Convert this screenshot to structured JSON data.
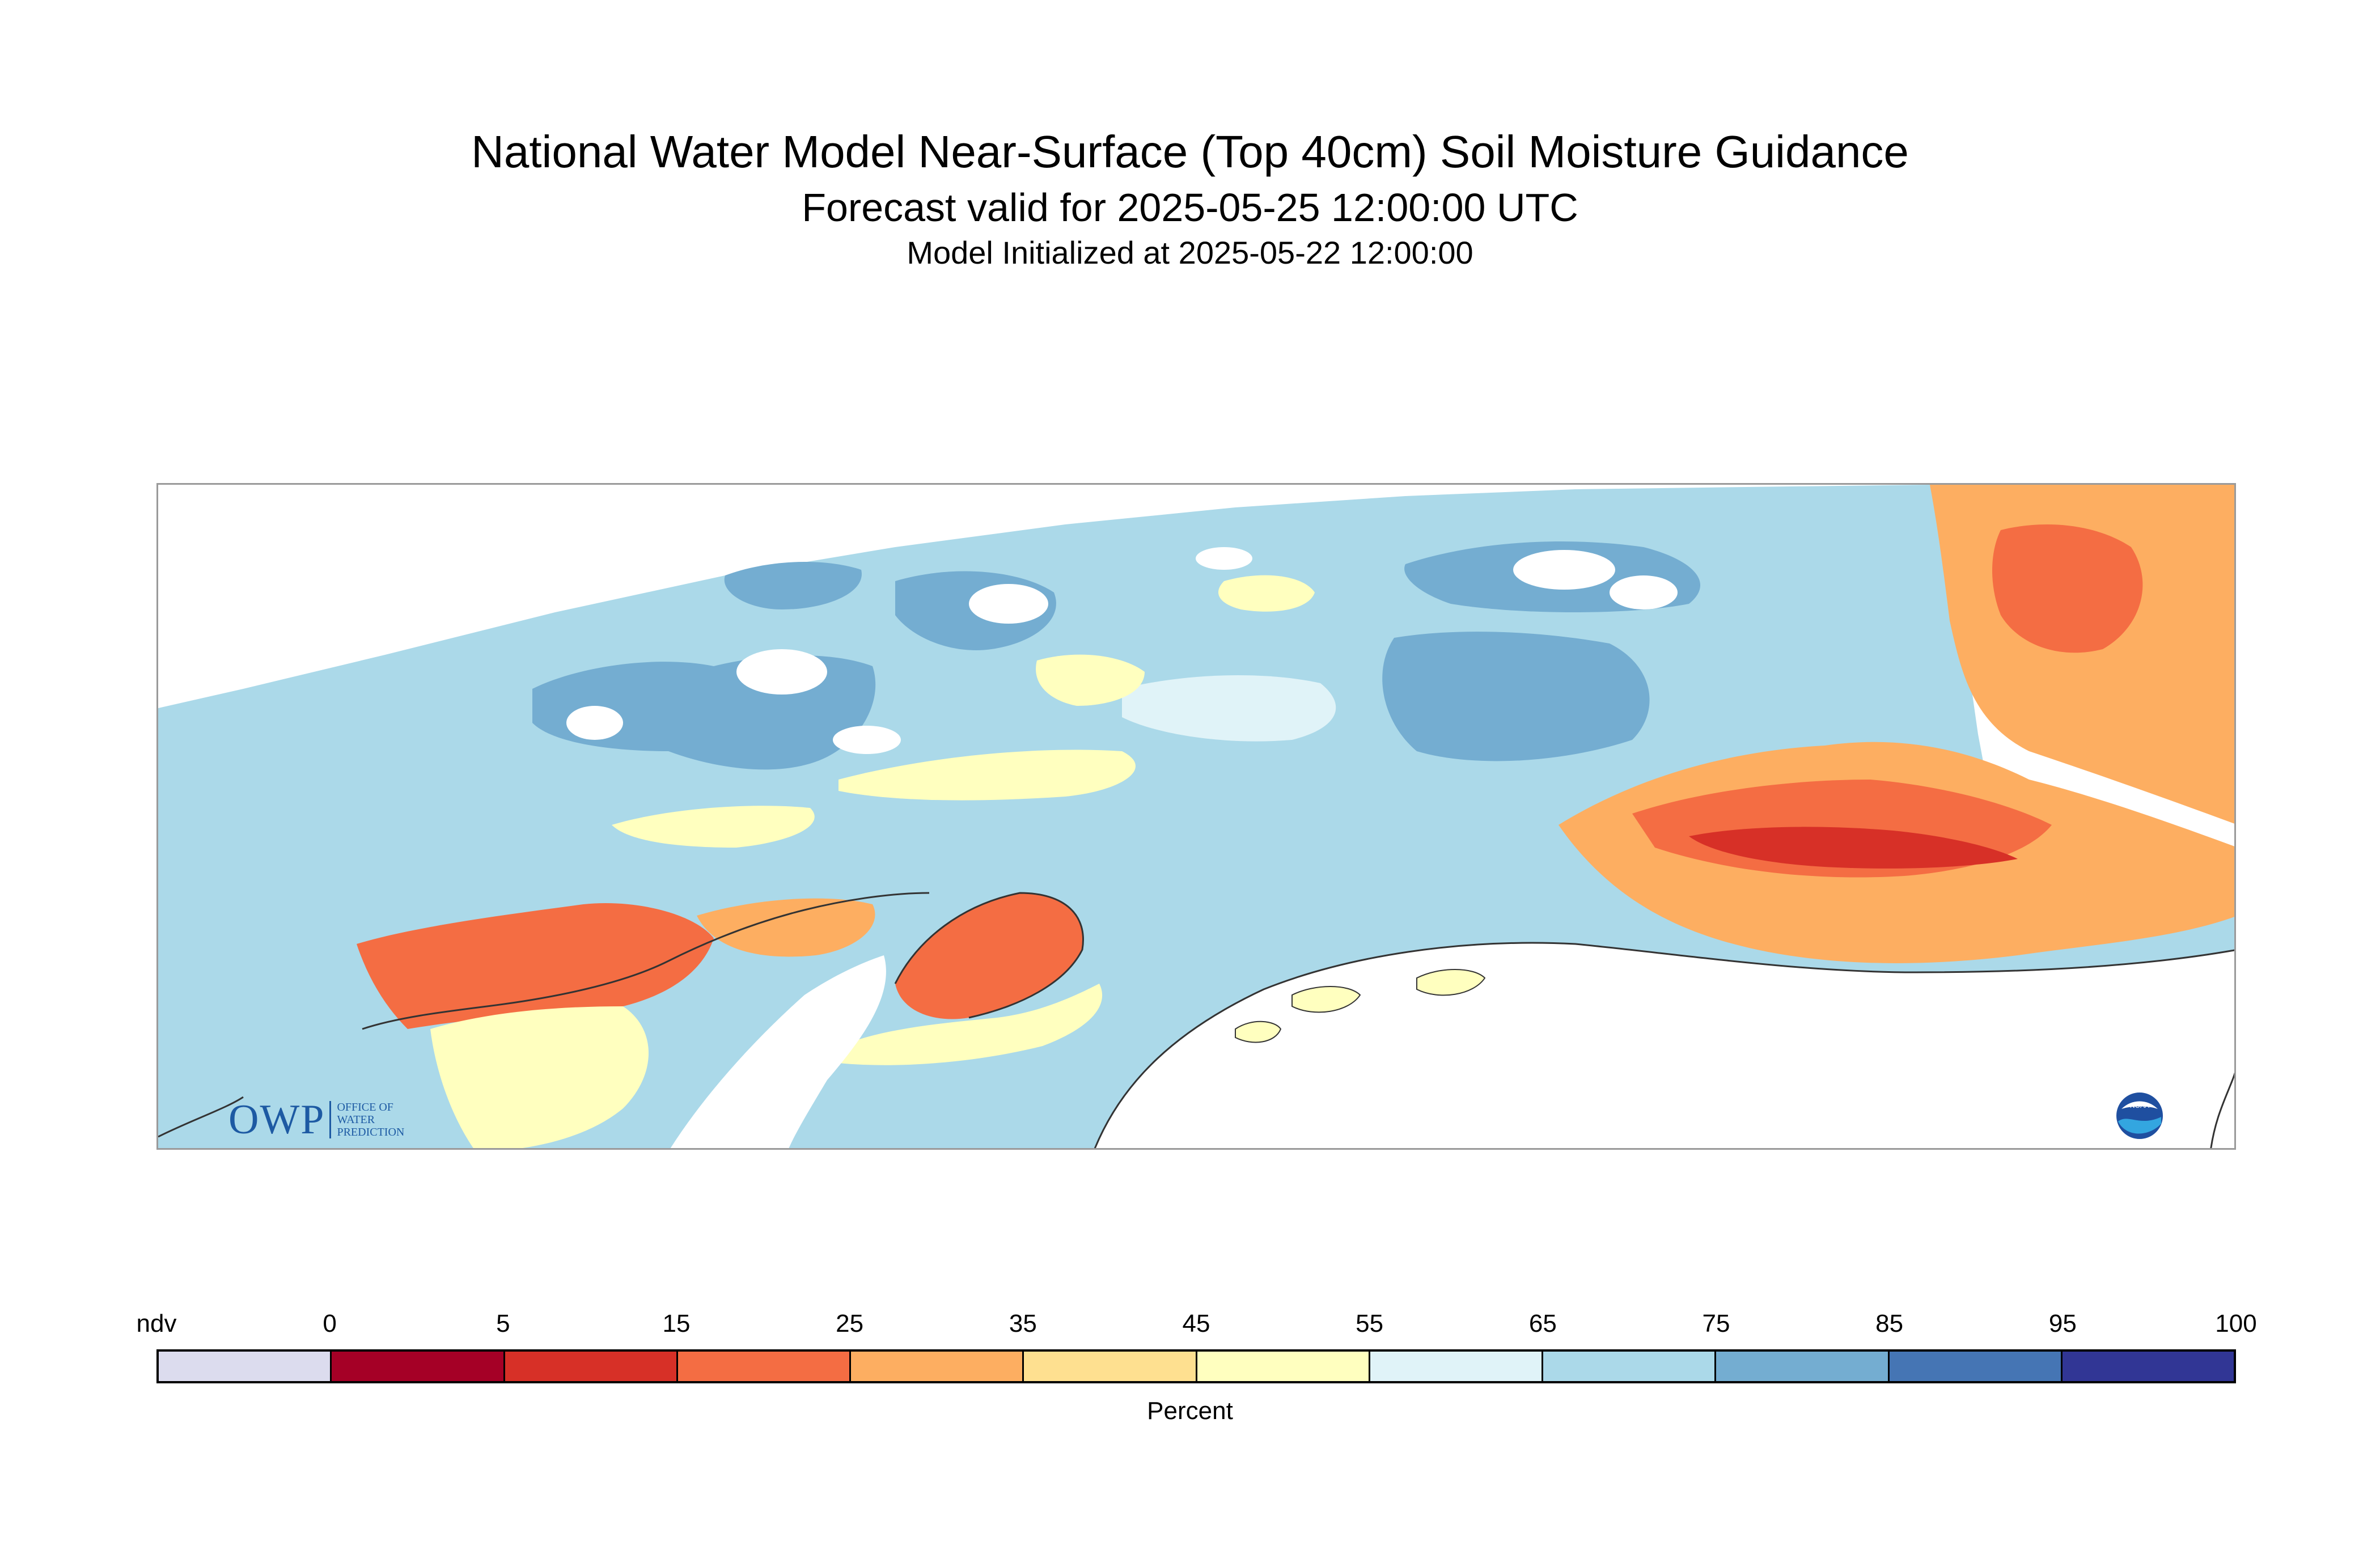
{
  "title": "National Water Model Near-Surface (Top 40cm) Soil Moisture Guidance",
  "subtitle": "Forecast valid for 2025-05-25 12:00:00 UTC",
  "init_line": "Model Initialized at 2025-05-22 12:00:00",
  "logos": {
    "owp_mark": "OWP",
    "owp_text": [
      "Office of",
      "Water",
      "Prediction"
    ],
    "noaa_text": "NOAA"
  },
  "legend": {
    "title": "Percent",
    "tick_labels": [
      "ndv",
      "0",
      "5",
      "15",
      "25",
      "35",
      "45",
      "55",
      "65",
      "75",
      "85",
      "95",
      "100"
    ],
    "colors": [
      "#dcdcee",
      "#a50026",
      "#d73027",
      "#f46d43",
      "#fdae61",
      "#fee090",
      "#ffffbf",
      "#e0f3f8",
      "#abd9e9",
      "#74add1",
      "#4575b4",
      "#313695"
    ]
  },
  "colors": {
    "very_dry": "#d73027",
    "dry": "#f46d43",
    "mod_dry": "#fdae61",
    "slightly_dry": "#fee090",
    "near_normal": "#ffffbf",
    "light_wet": "#e0f3f8",
    "wet": "#abd9e9",
    "wetter": "#74add1",
    "wettest": "#4575b4",
    "coastline": "#333333"
  }
}
